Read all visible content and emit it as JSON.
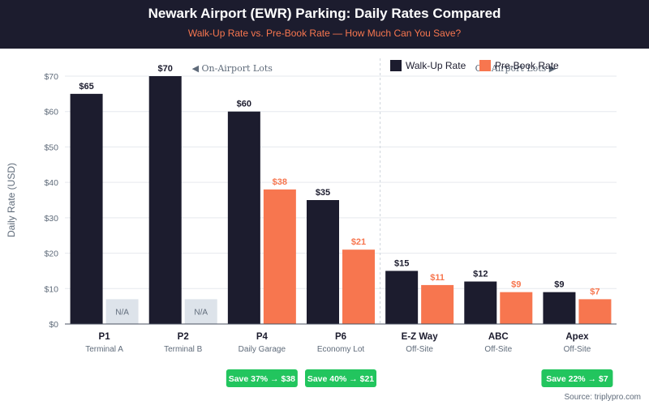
{
  "header": {
    "title": "Newark Airport (EWR) Parking: Daily Rates Compared",
    "subtitle": "Walk-Up Rate vs. Pre-Book Rate — How Much Can You Save?"
  },
  "source": "Source: triplypro.com",
  "colors": {
    "walkup": "#1c1c2e",
    "prebook": "#f7764f",
    "na": "#dde3ea",
    "savings": "#22c55e",
    "grid": "#e6e9ee",
    "axis_text": "#5f6b7a"
  },
  "chart_data": {
    "type": "bar",
    "title": "Newark Airport (EWR) Parking: Daily Rates Compared",
    "ylabel": "Daily Rate (USD)",
    "xlabel": "",
    "ylim": [
      0,
      70
    ],
    "yticks": [
      0,
      10,
      20,
      30,
      40,
      50,
      60,
      70
    ],
    "ytick_labels": [
      "$0",
      "$10",
      "$20",
      "$30",
      "$40",
      "$50",
      "$60",
      "$70"
    ],
    "grid": true,
    "legend": {
      "position": "top-right",
      "entries": [
        "Walk-Up Rate",
        "Pre-Book Rate"
      ]
    },
    "categories": [
      "P1",
      "P2",
      "P4",
      "P6",
      "E-Z Way",
      "ABC",
      "Apex"
    ],
    "sublabels": [
      "Terminal A",
      "Terminal B",
      "Daily Garage",
      "Economy Lot",
      "Off-Site",
      "Off-Site",
      "Off-Site"
    ],
    "series": [
      {
        "name": "Walk-Up Rate",
        "values": [
          65,
          70,
          60,
          35,
          15,
          12,
          9
        ],
        "labels": [
          "$65",
          "$70",
          "$60",
          "$35",
          "$15",
          "$12",
          "$9"
        ]
      },
      {
        "name": "Pre-Book Rate",
        "values": [
          null,
          null,
          38,
          21,
          11,
          9,
          7
        ],
        "labels": [
          "N/A",
          "N/A",
          "$38",
          "$21",
          "$11",
          "$9",
          "$7"
        ],
        "na_placeholder_value": 7
      }
    ],
    "annotations": {
      "on_airport": "◀ On-Airport Lots",
      "off_airport": "Off-Airport Lots ▶",
      "divider_after_category": "P6"
    },
    "savings": [
      "",
      "",
      "Save 37% → $38",
      "Save 40% → $21",
      "",
      "",
      "Save 22% → $7"
    ]
  }
}
